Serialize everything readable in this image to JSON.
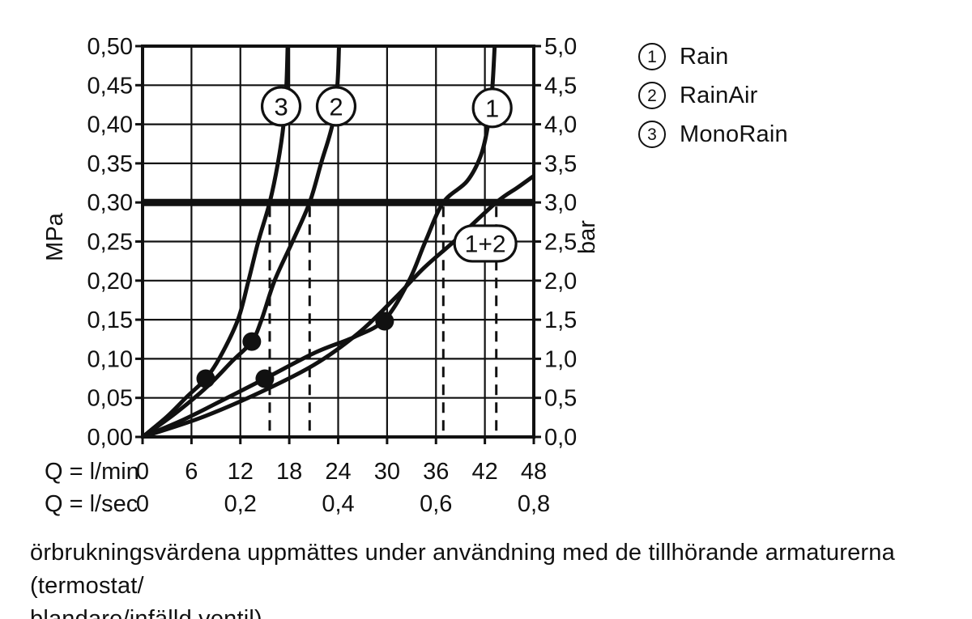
{
  "chart_data": {
    "type": "line",
    "x_axis": {
      "label_primary": "Q = l/min",
      "ticks_primary": [
        "0",
        "6",
        "12",
        "18",
        "24",
        "30",
        "36",
        "42",
        "48"
      ],
      "tick_values_lmin": [
        0,
        6,
        12,
        18,
        24,
        30,
        36,
        42,
        48
      ],
      "label_secondary": "Q = l/sec",
      "ticks_secondary": [
        {
          "value_lmin": 0,
          "text": "0"
        },
        {
          "value_lmin": 12,
          "text": "0,2"
        },
        {
          "value_lmin": 24,
          "text": "0,4"
        },
        {
          "value_lmin": 36,
          "text": "0,6"
        },
        {
          "value_lmin": 48,
          "text": "0,8"
        }
      ],
      "range_lmin": [
        0,
        48
      ],
      "gridline_step_lmin": 6
    },
    "y_axis_left": {
      "label": "MPa",
      "ticks": [
        "0,50",
        "0,45",
        "0,40",
        "0,35",
        "0,30",
        "0,25",
        "0,20",
        "0,15",
        "0,10",
        "0,05",
        "0,00"
      ],
      "range_mpa": [
        0,
        0.5
      ],
      "step_mpa": 0.05
    },
    "y_axis_right": {
      "label": "bar",
      "ticks": [
        "5,0",
        "4,5",
        "4,0",
        "3,5",
        "3,0",
        "2,5",
        "2,0",
        "1,5",
        "1,0",
        "0,5",
        "0,0"
      ],
      "range_bar": [
        0,
        5
      ]
    },
    "reference_line": {
      "pressure_mpa": 0.3,
      "pressure_bar": 3.0
    },
    "dashed_guides_lmin": [
      15.6,
      20.5,
      36.9,
      43.4
    ],
    "grid": true,
    "series": [
      {
        "id": "3",
        "name": "MonoRain",
        "points": [
          [
            0,
            0
          ],
          [
            3,
            0.026
          ],
          [
            5.5,
            0.052
          ],
          [
            7.75,
            0.0745
          ],
          [
            9.5,
            0.102
          ],
          [
            11.7,
            0.15
          ],
          [
            13.0,
            0.2
          ],
          [
            14.2,
            0.25
          ],
          [
            15.6,
            0.3
          ],
          [
            16.6,
            0.35
          ],
          [
            17.3,
            0.4
          ],
          [
            17.65,
            0.45
          ],
          [
            17.8,
            0.5
          ]
        ],
        "markers": [
          [
            7.75,
            0.0745
          ]
        ],
        "flow_at_3bar_lmin": 15.6,
        "label": {
          "text": "3",
          "shape": "circle",
          "at": [
            17.0,
            0.423
          ]
        }
      },
      {
        "id": "2",
        "name": "RainAir",
        "points": [
          [
            0,
            0
          ],
          [
            4,
            0.03
          ],
          [
            8,
            0.065
          ],
          [
            11,
            0.097
          ],
          [
            13.4,
            0.122
          ],
          [
            14.6,
            0.15
          ],
          [
            16.2,
            0.2
          ],
          [
            18.4,
            0.25
          ],
          [
            20.5,
            0.3
          ],
          [
            21.9,
            0.35
          ],
          [
            23.3,
            0.4
          ],
          [
            23.9,
            0.45
          ],
          [
            24.1,
            0.5
          ]
        ],
        "markers": [
          [
            13.4,
            0.122
          ]
        ],
        "flow_at_3bar_lmin": 20.5,
        "label": {
          "text": "2",
          "shape": "circle",
          "at": [
            23.75,
            0.423
          ]
        }
      },
      {
        "id": "1",
        "name": "Rain",
        "points": [
          [
            0,
            0
          ],
          [
            5,
            0.022
          ],
          [
            10,
            0.048
          ],
          [
            15,
            0.0745
          ],
          [
            21.2,
            0.108
          ],
          [
            26,
            0.128
          ],
          [
            29.7,
            0.15
          ],
          [
            32.7,
            0.2
          ],
          [
            34.7,
            0.25
          ],
          [
            36.9,
            0.3
          ],
          [
            39.8,
            0.327
          ],
          [
            41.5,
            0.36
          ],
          [
            42.4,
            0.4
          ],
          [
            42.9,
            0.445
          ],
          [
            43.2,
            0.5
          ]
        ],
        "markers": [
          [
            15,
            0.0745
          ],
          [
            29.7,
            0.148
          ]
        ],
        "flow_at_3bar_lmin": 36.9,
        "label": {
          "text": "1",
          "shape": "circle",
          "at": [
            42.9,
            0.421
          ]
        }
      },
      {
        "id": "1+2",
        "name": "Rain + RainAir",
        "points": [
          [
            0,
            0
          ],
          [
            7,
            0.024
          ],
          [
            14,
            0.055
          ],
          [
            21,
            0.092
          ],
          [
            26.5,
            0.133
          ],
          [
            31,
            0.178
          ],
          [
            34.5,
            0.216
          ],
          [
            38.2,
            0.25
          ],
          [
            43.4,
            0.3
          ],
          [
            46,
            0.319
          ],
          [
            48,
            0.334
          ]
        ],
        "markers": [],
        "flow_at_3bar_lmin": 43.4,
        "label": {
          "text": "1+2",
          "shape": "pill",
          "at": [
            42.05,
            0.2475
          ]
        }
      }
    ],
    "colors": {
      "line": "#111111",
      "background": "#ffffff"
    }
  },
  "legend": {
    "items": [
      {
        "symbol": "1",
        "label": "Rain"
      },
      {
        "symbol": "2",
        "label": "RainAir"
      },
      {
        "symbol": "3",
        "label": "MonoRain"
      }
    ]
  },
  "caption": {
    "line1": "örbrukningsvärdena uppmättes under användning med de tillhörande armaturerna (termostat/",
    "line2": "blandare/infälld ventil)."
  }
}
